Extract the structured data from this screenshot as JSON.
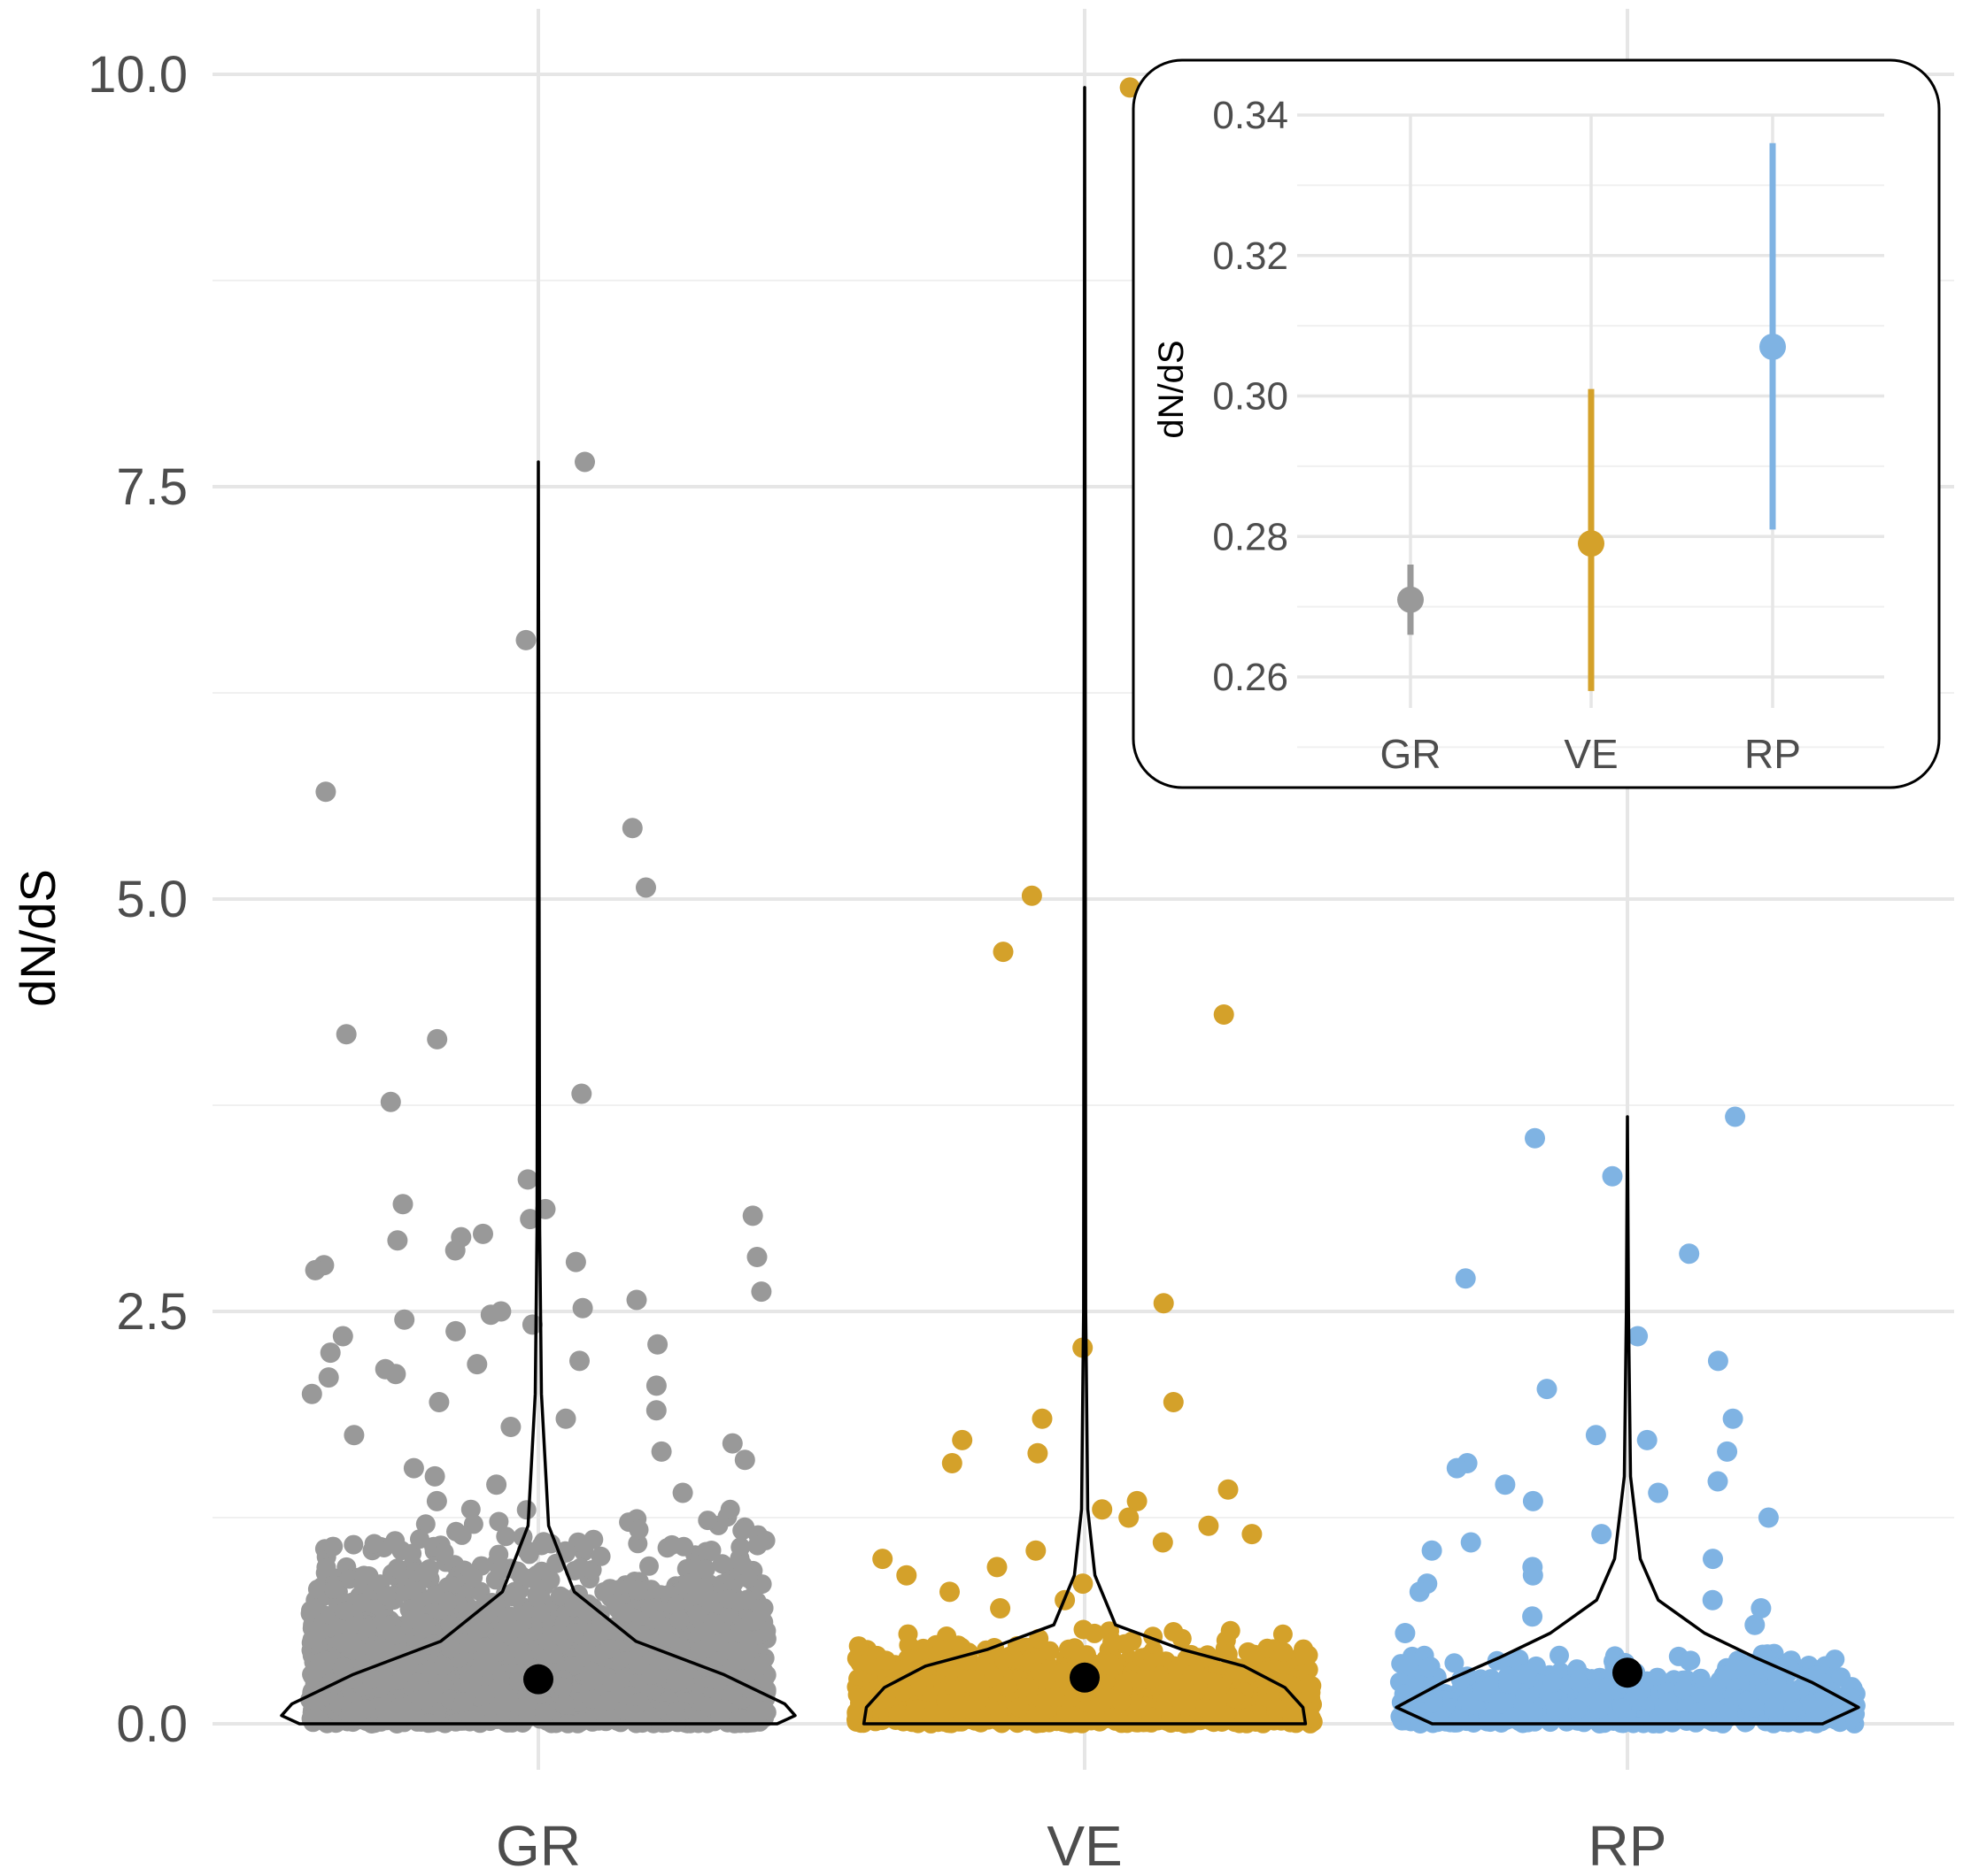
{
  "chart_data": [
    {
      "type": "violin",
      "title": "",
      "ylabel": "dN/dS",
      "xlabel": "",
      "ylim": [
        0,
        10
      ],
      "yticks": [
        "0.0",
        "2.5",
        "5.0",
        "7.5",
        "10.0"
      ],
      "categories": [
        "GR",
        "VE",
        "RP"
      ],
      "colors": {
        "GR": "#999999",
        "VE": "#D4A12A",
        "RP": "#7FB3E3"
      },
      "grid": true,
      "series": [
        {
          "category": "GR",
          "mean": 0.27,
          "max": 7.65,
          "dense_max": 1.3,
          "outliers": [
            7.65,
            6.57,
            5.65,
            5.43,
            5.07,
            4.18,
            4.15,
            3.82,
            3.77,
            3.3,
            3.15,
            3.12,
            3.08,
            3.06,
            2.97,
            2.95,
            2.93,
            2.87,
            2.83,
            2.8,
            2.78,
            2.75,
            2.62,
            2.57,
            2.52,
            2.5,
            2.48,
            2.45,
            2.42,
            2.38,
            2.35,
            2.3,
            2.25,
            2.2,
            2.18,
            2.15,
            2.12,
            2.1,
            2.05,
            2.0,
            1.95,
            1.9,
            1.85,
            1.8,
            1.75,
            1.7,
            1.65,
            1.6,
            1.55,
            1.5,
            1.45,
            1.4,
            1.35
          ]
        },
        {
          "category": "VE",
          "mean": 0.28,
          "max": 9.92,
          "dense_max": 0.6,
          "outliers": [
            9.92,
            5.02,
            4.68,
            4.3,
            2.55,
            2.28,
            1.95,
            1.85,
            1.72,
            1.64,
            1.58,
            1.42,
            1.35,
            1.3,
            1.25,
            1.2,
            1.15,
            1.1,
            1.05,
            1.0,
            0.95,
            0.9,
            0.85,
            0.8,
            0.75,
            0.7
          ]
        },
        {
          "category": "RP",
          "mean": 0.31,
          "max": 3.68,
          "dense_max": 0.45,
          "outliers": [
            3.68,
            3.55,
            3.32,
            2.85,
            2.7,
            2.35,
            2.2,
            2.03,
            1.85,
            1.75,
            1.72,
            1.65,
            1.58,
            1.55,
            1.47,
            1.45,
            1.4,
            1.35,
            1.25,
            1.15,
            1.1,
            1.05,
            1.0,
            0.95,
            0.9,
            0.85,
            0.8,
            0.75,
            0.7,
            0.65,
            0.6,
            0.55
          ]
        }
      ]
    },
    {
      "type": "pointrange",
      "inset": true,
      "ylabel": "dN/dS",
      "ylim": [
        0.25,
        0.345
      ],
      "yticks": [
        "0.26",
        "0.28",
        "0.30",
        "0.32",
        "0.34"
      ],
      "categories": [
        "GR",
        "VE",
        "RP"
      ],
      "points": [
        {
          "category": "GR",
          "y": 0.271,
          "low": 0.266,
          "high": 0.276
        },
        {
          "category": "VE",
          "y": 0.279,
          "low": 0.258,
          "high": 0.301
        },
        {
          "category": "RP",
          "y": 0.307,
          "low": 0.281,
          "high": 0.336
        }
      ]
    }
  ]
}
